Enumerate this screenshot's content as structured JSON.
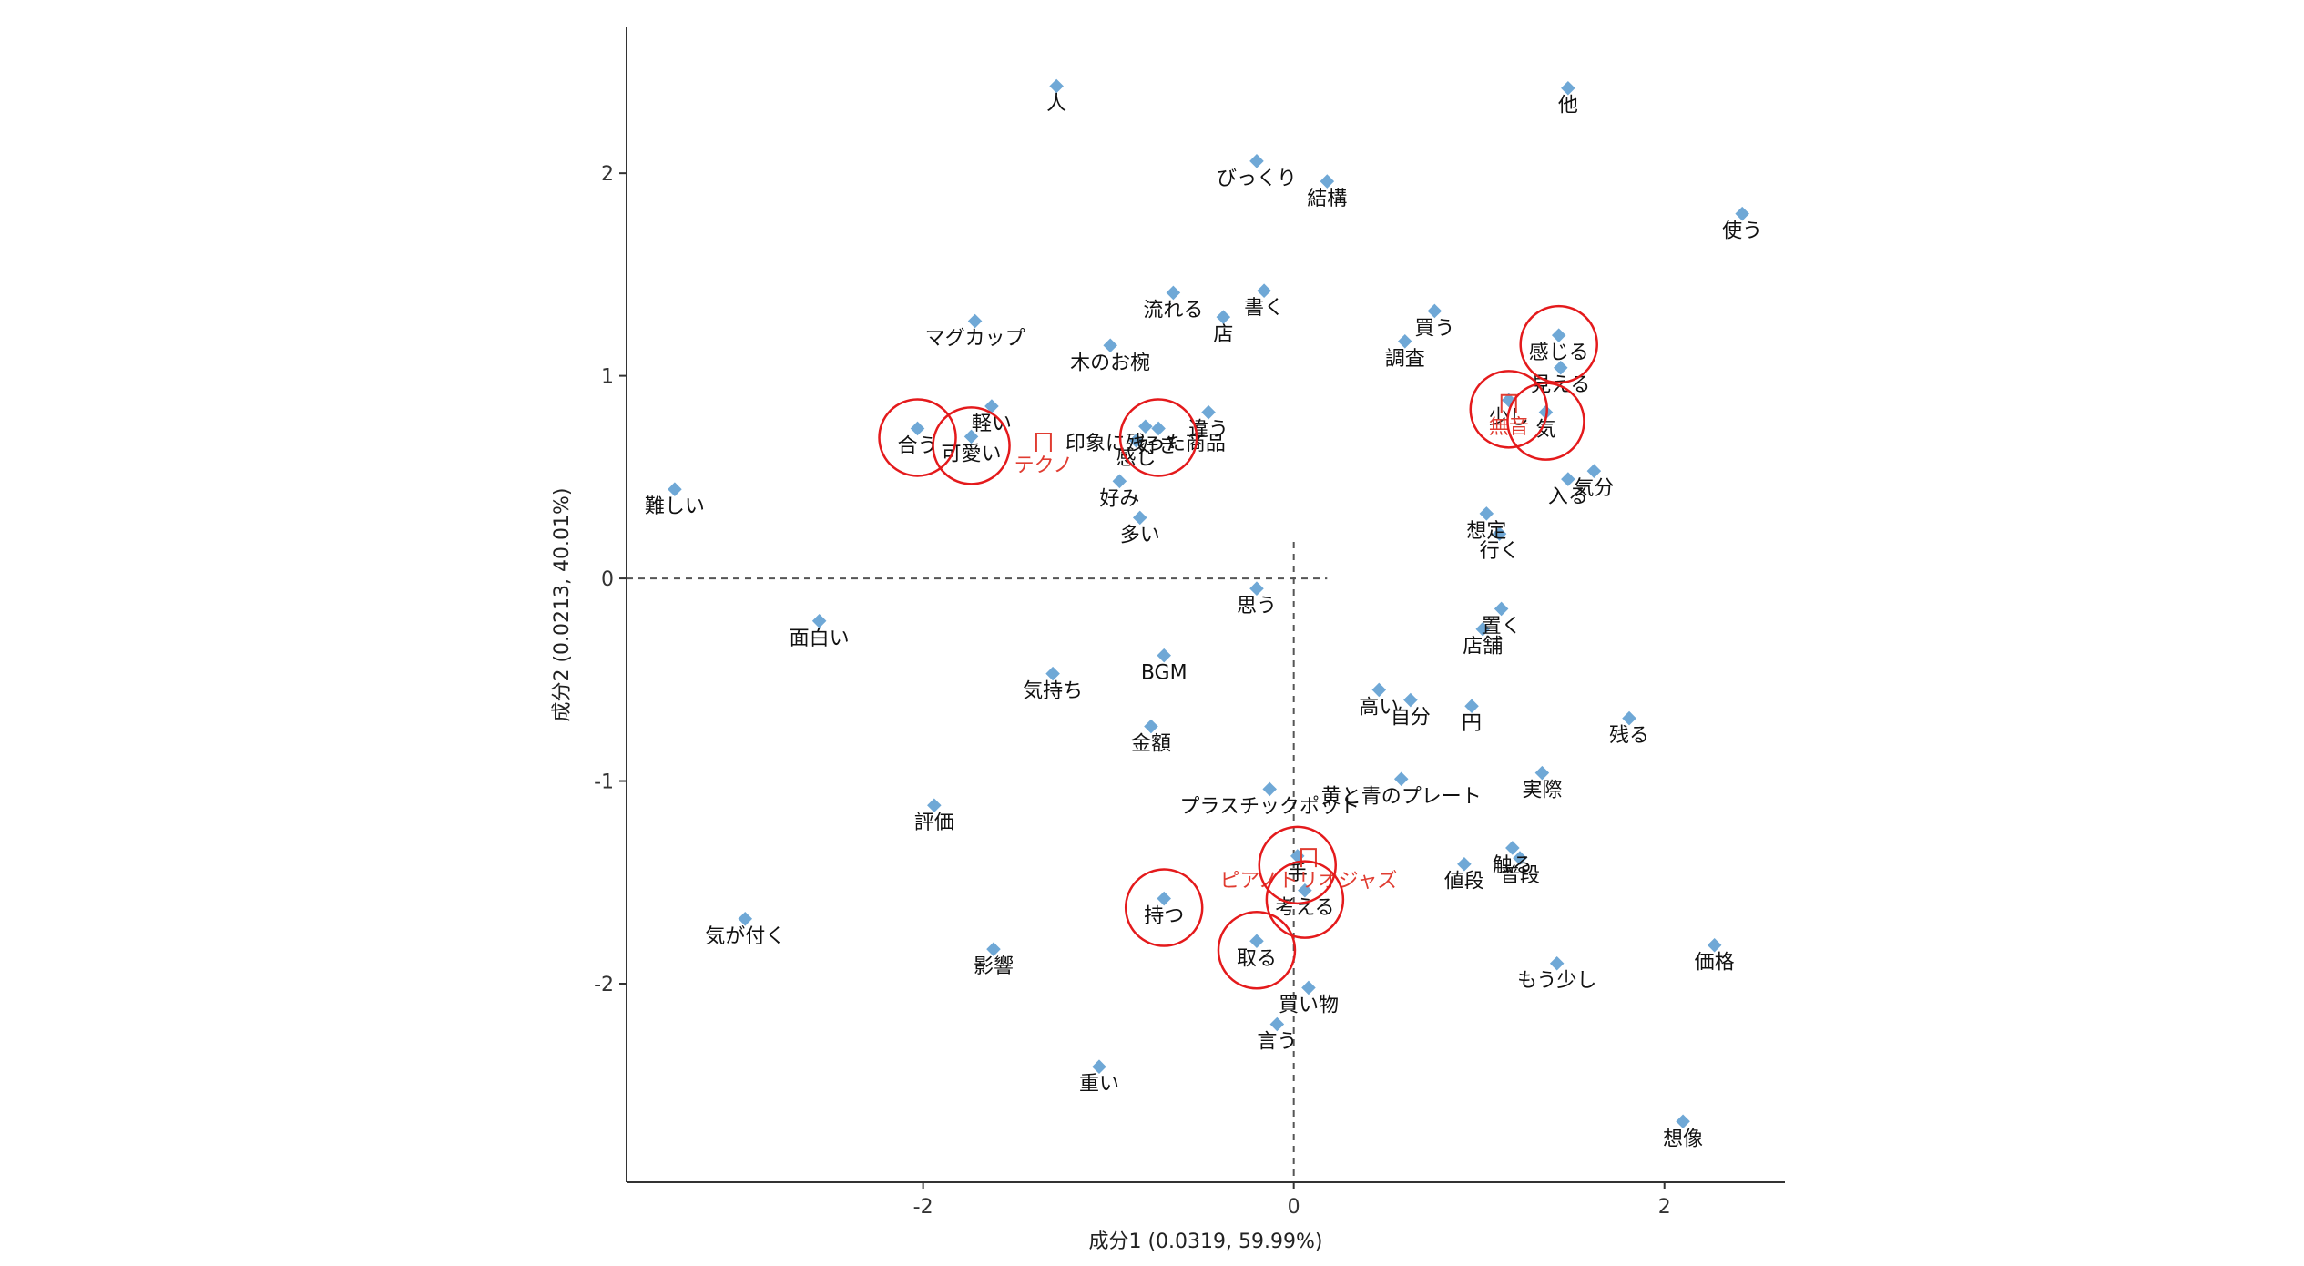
{
  "chart_data": {
    "type": "scatter",
    "xlabel": "成分1 (0.0319, 59.99%)",
    "ylabel": "成分2 (0.0213, 40.01%)",
    "xlim": [
      -3.6,
      2.65
    ],
    "ylim": [
      -2.98,
      2.72
    ],
    "x_ticks": [
      -2,
      0,
      2
    ],
    "y_ticks": [
      -2,
      -1,
      0,
      1,
      2
    ],
    "x_tick_labels": [
      "-2",
      "0",
      "2"
    ],
    "y_tick_labels": [
      "-2",
      "-1",
      "0",
      "1",
      "2"
    ],
    "grid": false,
    "reference_lines": [
      {
        "axis": "x",
        "value": 0,
        "style": "dashed"
      },
      {
        "axis": "y",
        "value": 0,
        "style": "dashed"
      }
    ],
    "colors": {
      "word_point": "#6fa8d6",
      "group_label": "#e03c31",
      "highlight_circle": "#e41a1c",
      "axis": "#333333"
    },
    "words": [
      {
        "label": "他",
        "x": 1.48,
        "y": 2.42
      },
      {
        "label": "人",
        "x": -1.28,
        "y": 2.43
      },
      {
        "label": "びっくり",
        "x": -0.2,
        "y": 2.06
      },
      {
        "label": "結構",
        "x": 0.18,
        "y": 1.96
      },
      {
        "label": "使う",
        "x": 2.42,
        "y": 1.8
      },
      {
        "label": "流れる",
        "x": -0.65,
        "y": 1.41
      },
      {
        "label": "店",
        "x": -0.38,
        "y": 1.29
      },
      {
        "label": "書く",
        "x": -0.16,
        "y": 1.42
      },
      {
        "label": "マグカップ",
        "x": -1.72,
        "y": 1.27
      },
      {
        "label": "買う",
        "x": 0.76,
        "y": 1.32
      },
      {
        "label": "感じる",
        "x": 1.43,
        "y": 1.2
      },
      {
        "label": "木のお椀",
        "x": -0.99,
        "y": 1.15
      },
      {
        "label": "調査",
        "x": 0.6,
        "y": 1.17
      },
      {
        "label": "見える",
        "x": 1.44,
        "y": 1.04
      },
      {
        "label": "軽い",
        "x": -1.63,
        "y": 0.85
      },
      {
        "label": "少し",
        "x": 1.16,
        "y": 0.88
      },
      {
        "label": "気",
        "x": 1.36,
        "y": 0.82
      },
      {
        "label": "印象に残った商品",
        "x": -0.8,
        "y": 0.75
      },
      {
        "label": "違う",
        "x": -0.46,
        "y": 0.82
      },
      {
        "label": "合う",
        "x": -2.03,
        "y": 0.74
      },
      {
        "label": "可愛い",
        "x": -1.74,
        "y": 0.7
      },
      {
        "label": "好き",
        "x": -0.73,
        "y": 0.74
      },
      {
        "label": "感じ",
        "x": -0.85,
        "y": 0.68
      },
      {
        "label": "気分",
        "x": 1.62,
        "y": 0.53
      },
      {
        "label": "入る",
        "x": 1.48,
        "y": 0.49
      },
      {
        "label": "難しい",
        "x": -3.34,
        "y": 0.44
      },
      {
        "label": "好み",
        "x": -0.94,
        "y": 0.48
      },
      {
        "label": "想定",
        "x": 1.04,
        "y": 0.32
      },
      {
        "label": "行く",
        "x": 1.11,
        "y": 0.22
      },
      {
        "label": "多い",
        "x": -0.83,
        "y": 0.3
      },
      {
        "label": "思う",
        "x": -0.2,
        "y": -0.05
      },
      {
        "label": "置く",
        "x": 1.12,
        "y": -0.15
      },
      {
        "label": "面白い",
        "x": -2.56,
        "y": -0.21
      },
      {
        "label": "店舗",
        "x": 1.02,
        "y": -0.25
      },
      {
        "label": "BGM",
        "x": -0.7,
        "y": -0.38
      },
      {
        "label": "気持ち",
        "x": -1.3,
        "y": -0.47
      },
      {
        "label": "高い",
        "x": 0.46,
        "y": -0.55
      },
      {
        "label": "自分",
        "x": 0.63,
        "y": -0.6
      },
      {
        "label": "円",
        "x": 0.96,
        "y": -0.63
      },
      {
        "label": "残る",
        "x": 1.81,
        "y": -0.69
      },
      {
        "label": "金額",
        "x": -0.77,
        "y": -0.73
      },
      {
        "label": "実際",
        "x": 1.34,
        "y": -0.96
      },
      {
        "label": "プラスチックポット",
        "x": -0.13,
        "y": -1.04
      },
      {
        "label": "評価",
        "x": -1.94,
        "y": -1.12
      },
      {
        "label": "黄と青のプレート",
        "x": 0.58,
        "y": -0.99
      },
      {
        "label": "触る",
        "x": 1.18,
        "y": -1.33
      },
      {
        "label": "手",
        "x": 0.02,
        "y": -1.37
      },
      {
        "label": "値段",
        "x": 0.92,
        "y": -1.41
      },
      {
        "label": "普段",
        "x": 1.22,
        "y": -1.38
      },
      {
        "label": "持つ",
        "x": -0.7,
        "y": -1.58
      },
      {
        "label": "考える",
        "x": 0.06,
        "y": -1.54
      },
      {
        "label": "取る",
        "x": -0.2,
        "y": -1.79
      },
      {
        "label": "気が付く",
        "x": -2.96,
        "y": -1.68
      },
      {
        "label": "影響",
        "x": -1.62,
        "y": -1.83
      },
      {
        "label": "価格",
        "x": 2.27,
        "y": -1.81
      },
      {
        "label": "もう少し",
        "x": 1.42,
        "y": -1.9
      },
      {
        "label": "買い物",
        "x": 0.08,
        "y": -2.02
      },
      {
        "label": "言う",
        "x": -0.09,
        "y": -2.2
      },
      {
        "label": "重い",
        "x": -1.05,
        "y": -2.41
      },
      {
        "label": "想像",
        "x": 2.1,
        "y": -2.68
      }
    ],
    "groups": [
      {
        "label": "テクノ",
        "x": -1.35,
        "y": 0.67
      },
      {
        "label": "無音",
        "x": 1.16,
        "y": 0.86
      },
      {
        "label": "ピアノトリオジャズ",
        "x": 0.08,
        "y": -1.38
      }
    ],
    "highlighted_words": [
      "感じる",
      "少し",
      "気",
      "合う",
      "可愛い",
      "好き",
      "手",
      "考える",
      "持つ",
      "取る"
    ]
  }
}
